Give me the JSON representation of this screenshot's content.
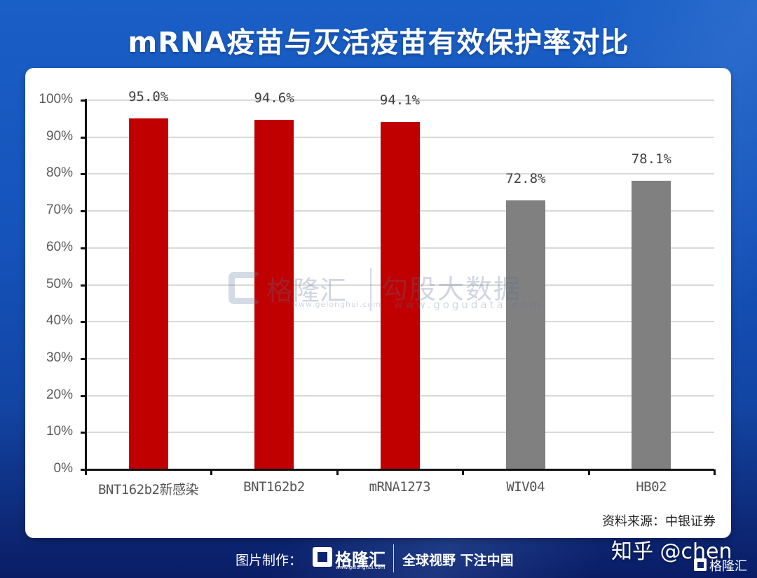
{
  "title": "mRNA疫苗与灭活疫苗有效保护率对比",
  "source": "资料来源：中银证券",
  "watermark": {
    "brand": "格隆汇",
    "brand_url": "www.gelonghui.com",
    "data_brand": "勾股大数据",
    "data_url": "www.gogudata.com"
  },
  "footer": {
    "made_by": "图片制作：",
    "brand": "格隆汇",
    "brand_url": "www.gelonghui.com",
    "slogan": "全球视野 下注中国"
  },
  "zhihu_mark": "知乎 @chen",
  "corner_brand": "格隆汇",
  "colors": {
    "mrna_bar": "#c00000",
    "inactivated_bar": "#808080",
    "title_text": "#ffffff"
  },
  "chart_data": {
    "type": "bar",
    "title": "mRNA疫苗与灭活疫苗有效保护率对比",
    "xlabel": "",
    "ylabel": "",
    "categories": [
      "BNT162b2新感染",
      "BNT162b2",
      "mRNA1273",
      "WIV04",
      "HB02"
    ],
    "values": [
      95.0,
      94.6,
      94.1,
      72.8,
      78.1
    ],
    "value_labels": [
      "95.0%",
      "94.6%",
      "94.1%",
      "72.8%",
      "78.1%"
    ],
    "bar_colors": [
      "#c00000",
      "#c00000",
      "#c00000",
      "#808080",
      "#808080"
    ],
    "groups": [
      "mRNA",
      "mRNA",
      "mRNA",
      "inactivated",
      "inactivated"
    ],
    "ylim": [
      0,
      100
    ],
    "y_ticks": [
      "0%",
      "10%",
      "20%",
      "30%",
      "40%",
      "50%",
      "60%",
      "70%",
      "80%",
      "90%",
      "100%"
    ],
    "grid": true,
    "legend": null,
    "source": "资料来源：中银证券"
  }
}
